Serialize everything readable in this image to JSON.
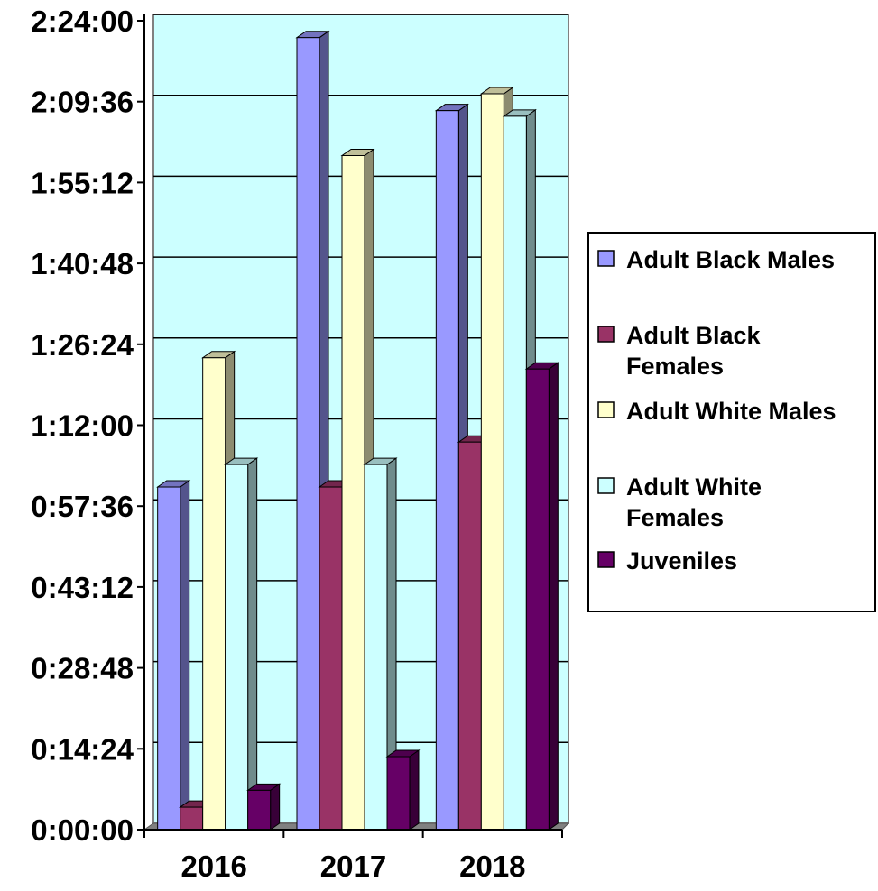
{
  "chart_data": {
    "type": "bar",
    "categories": [
      "2016",
      "2017",
      "2018"
    ],
    "y_ticks": [
      "0:00:00",
      "0:14:24",
      "0:28:48",
      "0:43:12",
      "0:57:36",
      "1:12:00",
      "1:26:24",
      "1:40:48",
      "1:55:12",
      "2:09:36",
      "2:24:00"
    ],
    "ylim_minutes": [
      0,
      144
    ],
    "y_unit": "h:mm:ss",
    "grid": true,
    "legend_position": "right",
    "series": [
      {
        "name": "Adult Black Males",
        "legend_lines": [
          "Adult Black Males"
        ],
        "color": "#9999ff",
        "values": [
          61,
          141,
          128
        ]
      },
      {
        "name": "Adult Black Females",
        "legend_lines": [
          "Adult Black",
          "Females"
        ],
        "color": "#993366",
        "values": [
          4,
          61,
          69
        ]
      },
      {
        "name": "Adult White Males",
        "legend_lines": [
          "Adult White Males"
        ],
        "color": "#ffffcc",
        "values": [
          84,
          120,
          131
        ]
      },
      {
        "name": "Adult White Females",
        "legend_lines": [
          "Adult White",
          "Females"
        ],
        "color": "#ccffff",
        "values": [
          65,
          65,
          127
        ]
      },
      {
        "name": "Juveniles",
        "legend_lines": [
          "Juveniles"
        ],
        "color": "#660066",
        "values": [
          7,
          13,
          82
        ]
      }
    ],
    "colors": {
      "plot_background": "#ccffff",
      "floor": "#808080",
      "wall_border": "#808080"
    }
  }
}
